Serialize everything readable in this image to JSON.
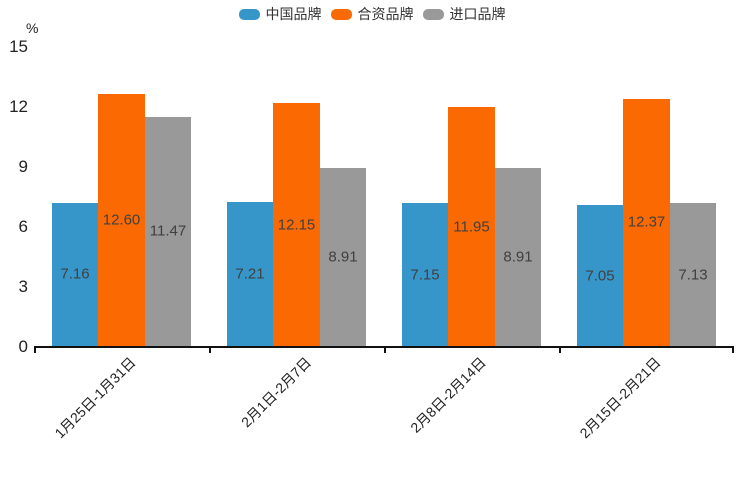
{
  "chart_data": {
    "type": "bar",
    "title": "",
    "unit_label": "%",
    "categories": [
      "1月25日-1月31日",
      "2月1日-2月7日",
      "2月8日-2月14日",
      "2月15日-2月21日"
    ],
    "series": [
      {
        "name": "中国品牌",
        "color": "#3796C9",
        "values": [
          7.16,
          7.21,
          7.15,
          7.05
        ]
      },
      {
        "name": "合资品牌",
        "color": "#FB6A02",
        "values": [
          12.6,
          12.15,
          11.95,
          12.37
        ]
      },
      {
        "name": "进口品牌",
        "color": "#999999",
        "values": [
          11.47,
          8.91,
          8.91,
          7.13
        ]
      }
    ],
    "y_ticks": [
      0,
      3,
      6,
      9,
      12,
      15
    ],
    "ylim": [
      0,
      15
    ],
    "grid": false,
    "legend_position": "top-center",
    "value_labels": "inside-center",
    "value_label_decimals": 2,
    "x_label_rotation_deg": 45,
    "axis_color": "#111111",
    "value_label_color": "#404040"
  }
}
